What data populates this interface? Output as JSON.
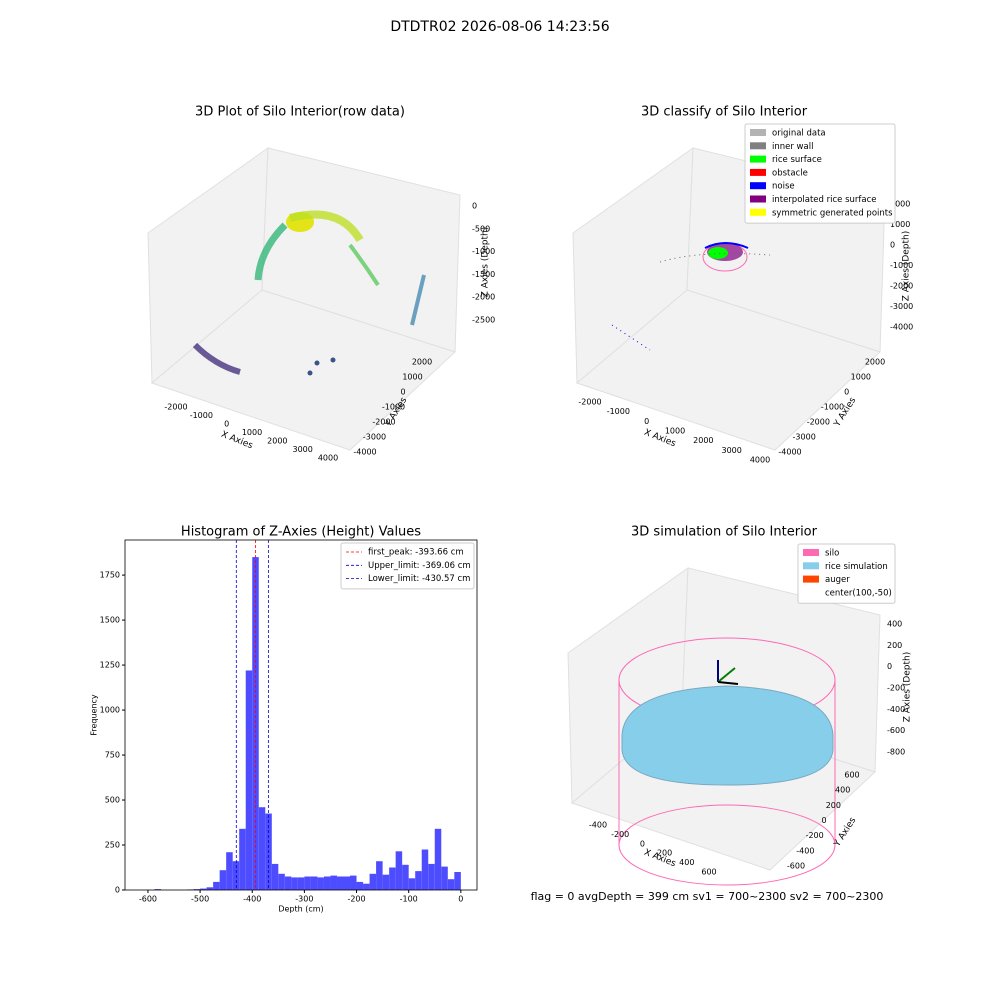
{
  "suptitle": "DTDTR02 2026-08-06 14:23:56",
  "chart_data": [
    {
      "type": "scatter3d",
      "title": "3D Plot of Silo Interior(row data)",
      "xlabel": "X Axies",
      "ylabel": "Y Axies",
      "zlabel": "Z Axies (Depth)",
      "xticks": [
        -2000,
        -1000,
        0,
        1000,
        2000,
        3000,
        4000
      ],
      "yticks": [
        -4000,
        -3000,
        -2000,
        -1000,
        0,
        1000,
        2000
      ],
      "zticks": [
        0,
        -500,
        -1000,
        -1500,
        -2000,
        -2500
      ]
    },
    {
      "type": "scatter3d",
      "title": "3D classify of Silo Interior",
      "xlabel": "X Axies",
      "ylabel": "Y Axies",
      "zlabel": "Z Axies (Depth)",
      "xticks": [
        -2000,
        -1000,
        0,
        1000,
        2000,
        3000,
        4000
      ],
      "yticks": [
        -4000,
        -3000,
        -2000,
        -1000,
        0,
        1000,
        2000
      ],
      "zticks": [
        2000,
        1000,
        0,
        -1000,
        -2000,
        -3000,
        -4000
      ],
      "series": [
        {
          "name": "original data",
          "color": "#b3b3b3"
        },
        {
          "name": "inner wall",
          "color": "#808080"
        },
        {
          "name": "rice surface",
          "color": "#00ff00"
        },
        {
          "name": "obstacle",
          "color": "#ff0000"
        },
        {
          "name": "noise",
          "color": "#0000ff"
        },
        {
          "name": "interpolated rice surface",
          "color": "#800080"
        },
        {
          "name": "symmetric generated points",
          "color": "#ffff00"
        }
      ]
    },
    {
      "type": "histogram",
      "title": "Histogram of Z-Axies (Height) Values",
      "xlabel": "Depth (cm)",
      "ylabel": "Frequency",
      "color": "#4d4dff",
      "bins": [
        -600,
        -587.5,
        -575,
        -562.5,
        -550,
        -537.5,
        -525,
        -512.5,
        -500,
        -487.5,
        -475,
        -462.5,
        -450,
        -437.5,
        -425,
        -412.5,
        -400,
        -387.5,
        -375,
        -362.5,
        -350,
        -337.5,
        -325,
        -312.5,
        -300,
        -287.5,
        -275,
        -262.5,
        -250,
        -237.5,
        -225,
        -212.5,
        -200,
        -187.5,
        -175,
        -162.5,
        -150,
        -137.5,
        -125,
        -112.5,
        -100,
        -87.5,
        -75,
        -62.5,
        -50,
        -37.5,
        -25,
        -12.5,
        0
      ],
      "values": [
        0,
        5,
        0,
        0,
        0,
        0,
        3,
        5,
        8,
        15,
        45,
        110,
        210,
        160,
        340,
        1220,
        1850,
        460,
        425,
        145,
        90,
        75,
        70,
        70,
        75,
        75,
        70,
        75,
        80,
        75,
        75,
        80,
        45,
        35,
        90,
        160,
        85,
        125,
        215,
        140,
        65,
        105,
        225,
        145,
        340,
        130,
        60,
        100
      ],
      "xlim": [
        -644,
        31
      ],
      "ylim": [
        0,
        1945
      ],
      "xticks": [
        -600,
        -500,
        -400,
        -300,
        -200,
        -100,
        0
      ],
      "yticks": [
        0,
        250,
        500,
        750,
        1000,
        1250,
        1500,
        1750
      ],
      "lines": [
        {
          "name": "first_peak: -393.66 cm",
          "value": -393.66,
          "color": "#ff0000"
        },
        {
          "name": "Upper_limit: -369.06 cm",
          "value": -369.06,
          "color": "#0000cc"
        },
        {
          "name": "Lower_limit: -430.57 cm",
          "value": -430.57,
          "color": "#0000cc"
        }
      ]
    },
    {
      "type": "surface3d",
      "title": "3D simulation of Silo Interior",
      "xlabel": "X Axies",
      "ylabel": "Y Axies",
      "zlabel": "Z Axies (Depth)",
      "xticks": [
        -400,
        -200,
        0,
        200,
        400,
        600
      ],
      "yticks": [
        -600,
        -400,
        -200,
        0,
        200,
        400,
        600
      ],
      "zticks": [
        400,
        200,
        0,
        -200,
        -400,
        -600,
        -800
      ],
      "series": [
        {
          "name": "silo",
          "color": "#ff69b4"
        },
        {
          "name": "rice simulation",
          "color": "#87ceeb"
        },
        {
          "name": "auger",
          "color": "#ff4500"
        },
        {
          "name": "center(100,-50)",
          "color": "#ffffff"
        }
      ],
      "annotation": "flag = 0     avgDepth = 399 cm  sv1 = 700~2300  sv2 = 700~2300"
    }
  ]
}
